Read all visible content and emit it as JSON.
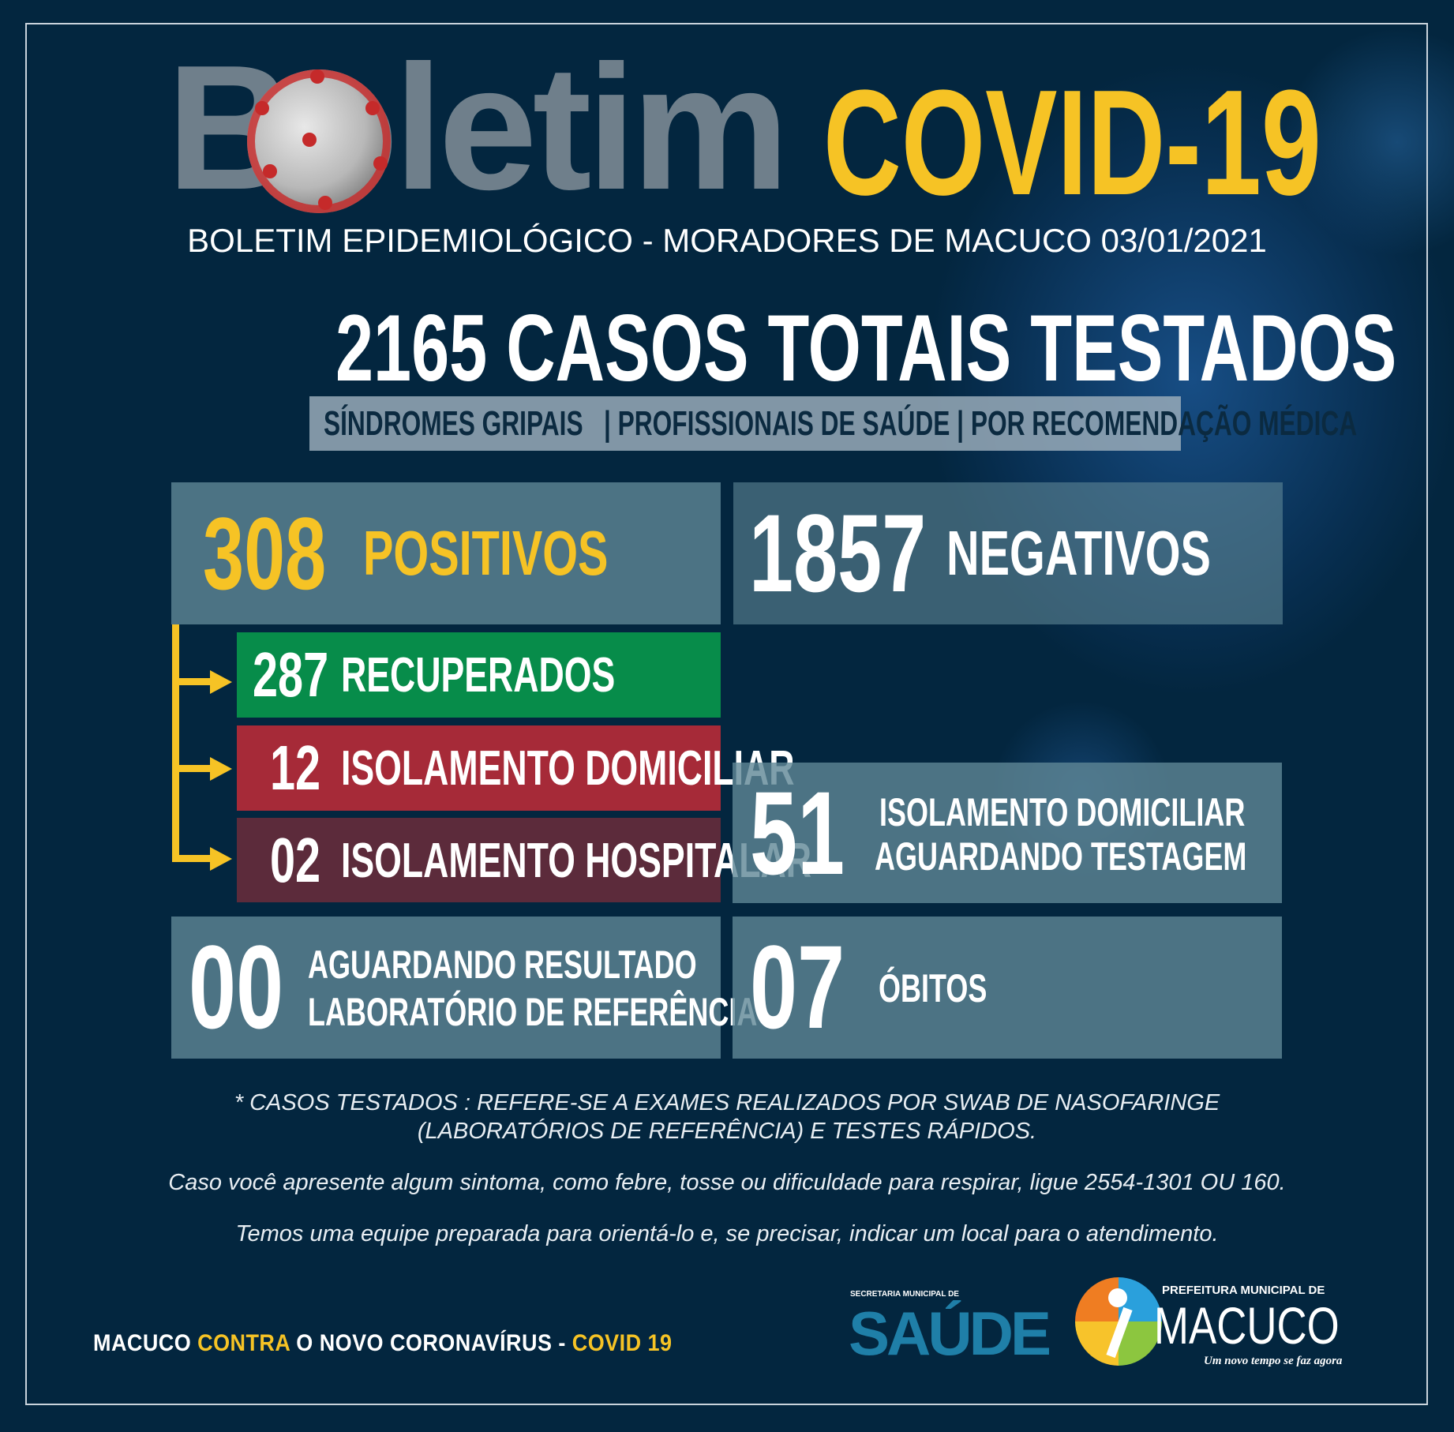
{
  "header": {
    "title_word": "Boletim",
    "title_highlight": "COVID-19",
    "subtitle": "BOLETIM EPIDEMIOLÓGICO - MORADORES DE MACUCO 03/01/2021"
  },
  "total": {
    "value": "2165",
    "label": "CASOS TOTAIS TESTADOS"
  },
  "categories": [
    "SÍNDROMES GRIPAIS",
    "PROFISSIONAIS DE SAÚDE",
    "POR RECOMENDAÇÃO MÉDICA"
  ],
  "stats": {
    "positivos": {
      "value": "308",
      "label": "POSITIVOS"
    },
    "negativos": {
      "value": "1857",
      "label": "NEGATIVOS"
    },
    "recuperados": {
      "value": "287",
      "label": "RECUPERADOS"
    },
    "isolamento_domiciliar": {
      "value": "12",
      "label": "ISOLAMENTO DOMICILIAR"
    },
    "isolamento_hospitalar": {
      "value": "02",
      "label": "ISOLAMENTO HOSPITALAR"
    },
    "aguardando_testagem": {
      "value": "51",
      "label1": "ISOLAMENTO DOMICILIAR",
      "label2": "AGUARDANDO TESTAGEM"
    },
    "aguardando_resultado": {
      "value": "00",
      "label1": "AGUARDANDO RESULTADO",
      "label2": "LABORATÓRIO DE REFERÊNCIA"
    },
    "obitos": {
      "value": "07",
      "label": "ÓBITOS"
    }
  },
  "notes": {
    "line1": "* CASOS TESTADOS : REFERE-SE A EXAMES REALIZADOS POR SWAB DE NASOFARINGE",
    "line2": "(LABORATÓRIOS DE REFERÊNCIA)  E  TESTES RÁPIDOS.",
    "line3": "Caso você apresente algum sintoma, como febre, tosse ou dificuldade para respirar, ligue 2554-1301 OU 160.",
    "line4": "Temos uma equipe preparada para orientá-lo e, se precisar, indicar um local para o atendimento."
  },
  "footer": {
    "tag_a": "MACUCO ",
    "tag_b": "CONTRA",
    "tag_c": " O NOVO CORONAVÍRUS - ",
    "tag_d": "COVID 19",
    "logo_saude_small": "SECRETARIA MUNICIPAL DE",
    "logo_saude": "SAÚDE",
    "logo_pref": "PREFEITURA MUNICIPAL DE",
    "logo_macuco": "MACUCO",
    "logo_slogan": "Um novo tempo se faz agora"
  },
  "colors": {
    "background": "#03263f",
    "accent": "#f6c325",
    "recuperados": "#078c4a",
    "domiciliar": "#a62a38",
    "hospitalar": "#5c2b3b"
  }
}
